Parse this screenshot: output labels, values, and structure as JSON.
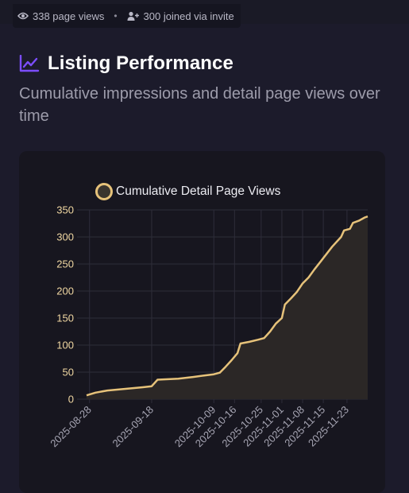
{
  "header": {
    "page_views_text": "338 page views",
    "separator": "•",
    "invites_text": "300 joined via invite"
  },
  "section": {
    "title": "Listing Performance",
    "subtitle": "Cumulative impressions and detail page views over time"
  },
  "icons": {
    "views": "eye-icon",
    "invites": "user-plus-icon",
    "title": "line-chart-icon"
  },
  "colors": {
    "accent": "#7c4dff",
    "line": "#e6c27a",
    "fill": "#2b2726",
    "grid": "#2e2d3a"
  },
  "chart_data": {
    "type": "area",
    "title": "",
    "xlabel": "",
    "ylabel": "",
    "legend": "top",
    "ylim": [
      0,
      350
    ],
    "yticks": [
      0,
      50,
      100,
      150,
      200,
      250,
      300,
      350
    ],
    "xticks": [
      "2025-08-28",
      "2025-09-18",
      "2025-10-09",
      "2025-10-16",
      "2025-10-25",
      "2025-11-01",
      "2025-11-08",
      "2025-11-15",
      "2025-11-23"
    ],
    "series": [
      {
        "name": "Cumulative Detail Page Views",
        "points": [
          [
            "2025-08-27",
            7
          ],
          [
            "2025-08-30",
            12
          ],
          [
            "2025-09-03",
            16
          ],
          [
            "2025-09-07",
            18
          ],
          [
            "2025-09-11",
            20
          ],
          [
            "2025-09-15",
            22
          ],
          [
            "2025-09-18",
            24
          ],
          [
            "2025-09-20",
            36
          ],
          [
            "2025-09-27",
            38
          ],
          [
            "2025-10-02",
            41
          ],
          [
            "2025-10-06",
            44
          ],
          [
            "2025-10-09",
            46
          ],
          [
            "2025-10-11",
            49
          ],
          [
            "2025-10-13",
            60
          ],
          [
            "2025-10-15",
            72
          ],
          [
            "2025-10-17",
            85
          ],
          [
            "2025-10-18",
            103
          ],
          [
            "2025-10-21",
            106
          ],
          [
            "2025-10-24",
            110
          ],
          [
            "2025-10-26",
            113
          ],
          [
            "2025-10-28",
            125
          ],
          [
            "2025-10-30",
            140
          ],
          [
            "2025-11-01",
            150
          ],
          [
            "2025-11-02",
            175
          ],
          [
            "2025-11-04",
            186
          ],
          [
            "2025-11-06",
            198
          ],
          [
            "2025-11-08",
            214
          ],
          [
            "2025-11-10",
            225
          ],
          [
            "2025-11-12",
            240
          ],
          [
            "2025-11-14",
            254
          ],
          [
            "2025-11-16",
            268
          ],
          [
            "2025-11-18",
            282
          ],
          [
            "2025-11-20",
            294
          ],
          [
            "2025-11-21",
            300
          ],
          [
            "2025-11-22",
            312
          ],
          [
            "2025-11-24",
            315
          ],
          [
            "2025-11-25",
            326
          ],
          [
            "2025-11-27",
            330
          ],
          [
            "2025-11-29",
            336
          ],
          [
            "2025-11-30",
            338
          ]
        ]
      }
    ]
  }
}
